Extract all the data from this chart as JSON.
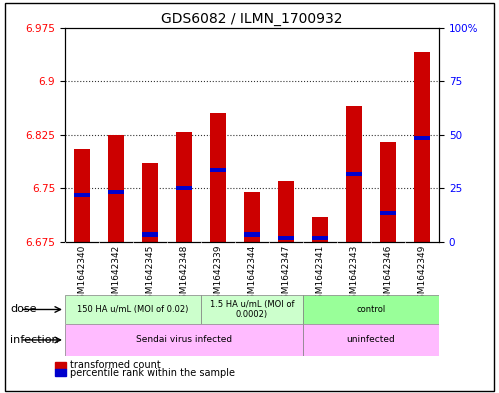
{
  "title": "GDS6082 / ILMN_1700932",
  "samples": [
    "GSM1642340",
    "GSM1642342",
    "GSM1642345",
    "GSM1642348",
    "GSM1642339",
    "GSM1642344",
    "GSM1642347",
    "GSM1642341",
    "GSM1642343",
    "GSM1642346",
    "GSM1642349"
  ],
  "transformed_counts": [
    6.805,
    6.825,
    6.785,
    6.828,
    6.855,
    6.745,
    6.76,
    6.71,
    6.865,
    6.815,
    6.94
  ],
  "percentile_values": [
    6.74,
    6.745,
    6.685,
    6.75,
    6.775,
    6.685,
    6.68,
    6.68,
    6.77,
    6.715,
    6.82
  ],
  "ylim_left": [
    6.675,
    6.975
  ],
  "ylim_right": [
    0,
    100
  ],
  "yticks_left": [
    6.675,
    6.75,
    6.825,
    6.9,
    6.975
  ],
  "ytick_labels_left": [
    "6.675",
    "6.75",
    "6.825",
    "6.9",
    "6.975"
  ],
  "yticks_right": [
    0,
    25,
    50,
    75,
    100
  ],
  "ytick_labels_right": [
    "0",
    "25",
    "50",
    "75",
    "100%"
  ],
  "bar_color": "#cc0000",
  "percentile_color": "#0000cc",
  "bar_bottom": 6.675,
  "bar_width": 0.45,
  "dose_groups": [
    {
      "label": "150 HA u/mL (MOI of 0.02)",
      "start": 0,
      "end": 4,
      "color": "#ccffcc"
    },
    {
      "label": "1.5 HA u/mL (MOI of\n0.0002)",
      "start": 4,
      "end": 7,
      "color": "#ccffcc"
    },
    {
      "label": "control",
      "start": 7,
      "end": 11,
      "color": "#99ff99"
    }
  ],
  "infection_groups": [
    {
      "label": "Sendai virus infected",
      "start": 0,
      "end": 7,
      "color": "#ffbbff"
    },
    {
      "label": "uninfected",
      "start": 7,
      "end": 11,
      "color": "#ffbbff"
    }
  ],
  "legend_items": [
    {
      "label": "transformed count",
      "color": "#cc0000"
    },
    {
      "label": "percentile rank within the sample",
      "color": "#0000cc"
    }
  ],
  "xtick_bg": "#cccccc",
  "gridline_y": [
    6.75,
    6.825,
    6.9
  ],
  "dose_boundary_colors": [
    "#ccffcc",
    "#ccffcc",
    "#99ff99"
  ],
  "dose_labels": [
    "150 HA u/mL (MOI of 0.02)",
    "1.5 HA u/mL (MOI of\n0.0002)",
    "control"
  ],
  "dose_boundaries": [
    0,
    4,
    7,
    11
  ],
  "inf_boundary_colors": [
    "#ffbbff",
    "#ffbbff"
  ],
  "inf_labels": [
    "Sendai virus infected",
    "uninfected"
  ],
  "inf_boundaries": [
    0,
    7,
    11
  ]
}
